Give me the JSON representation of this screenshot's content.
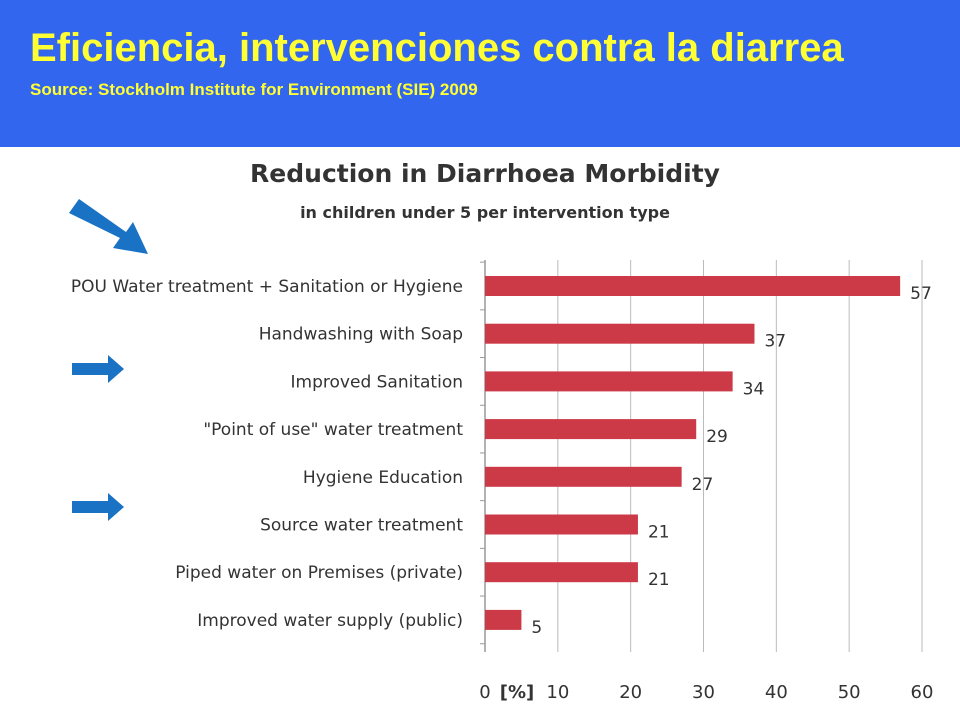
{
  "slide": {
    "title": "Eficiencia, intervenciones contra la diarrea",
    "source": "Source: Stockholm Institute for Environment (SIE) 2009"
  },
  "colors": {
    "header_bg": "#3366ee",
    "title_text": "#ffff33",
    "bar": "#cc3a48",
    "arrow": "#1a72c4",
    "grid": "#bbbbbb"
  },
  "arrows": [
    {
      "icon": "arrow-diagonal-down-right-icon",
      "points_to": "POU Water treatment + Sanitation or Hygiene"
    },
    {
      "icon": "arrow-right-icon",
      "points_to": "Improved Sanitation"
    },
    {
      "icon": "arrow-right-icon",
      "points_to": "Source water treatment"
    }
  ],
  "chart_data": {
    "type": "bar",
    "orientation": "horizontal",
    "title": "Reduction in Diarrhoea Morbidity",
    "subtitle": "in children under 5 per intervention type",
    "categories": [
      "POU Water treatment + Sanitation or Hygiene",
      "Handwashing with Soap",
      "Improved Sanitation",
      "\"Point of use\" water treatment",
      "Hygiene Education",
      "Source water treatment",
      "Piped water on Premises (private)",
      "Improved water supply (public)"
    ],
    "values": [
      57,
      37,
      34,
      29,
      27,
      21,
      21,
      5
    ],
    "xlim": [
      0,
      60
    ],
    "xticks": [
      "0",
      "10",
      "20",
      "30",
      "40",
      "50",
      "60"
    ],
    "unit_label": "[%]",
    "grid": true
  }
}
